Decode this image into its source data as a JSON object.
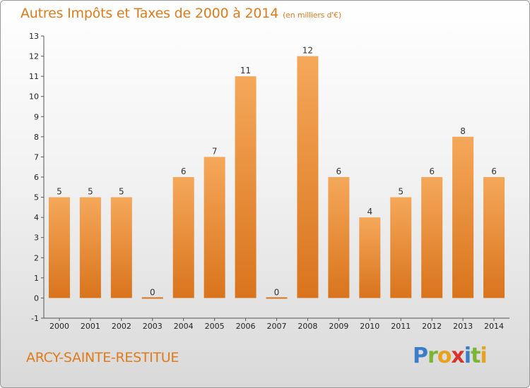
{
  "header": {
    "title": "Autres Impôts et Taxes de 2000 à 2014",
    "subtitle": "(en milliers d'€)"
  },
  "footer": {
    "place": "ARCY-SAINTE-RESTITUE",
    "logo_letters": [
      "P",
      "r",
      "o",
      "x",
      "i",
      "t",
      "i"
    ]
  },
  "colors": {
    "accent": "#e07b1a",
    "bar_top": "#f5a85a",
    "bar_bottom": "#d9741c"
  },
  "chart_data": {
    "type": "bar",
    "categories": [
      "2000",
      "2001",
      "2002",
      "2003",
      "2004",
      "2005",
      "2006",
      "2007",
      "2008",
      "2009",
      "2010",
      "2011",
      "2012",
      "2013",
      "2014"
    ],
    "values": [
      5,
      5,
      5,
      0,
      6,
      7,
      11,
      0,
      12,
      6,
      4,
      5,
      6,
      8,
      6
    ],
    "data_labels": [
      "5",
      "5",
      "5",
      "0",
      "6",
      "7",
      "11",
      "0",
      "12",
      "6",
      "4",
      "5",
      "6",
      "8",
      "6"
    ],
    "ylim": [
      -1,
      13
    ],
    "yticks": [
      -1,
      0,
      1,
      2,
      3,
      4,
      5,
      6,
      7,
      8,
      9,
      10,
      11,
      12,
      13
    ],
    "title": "Autres Impôts et Taxes de 2000 à 2014",
    "ylabel": "",
    "xlabel": "",
    "grid": false
  }
}
